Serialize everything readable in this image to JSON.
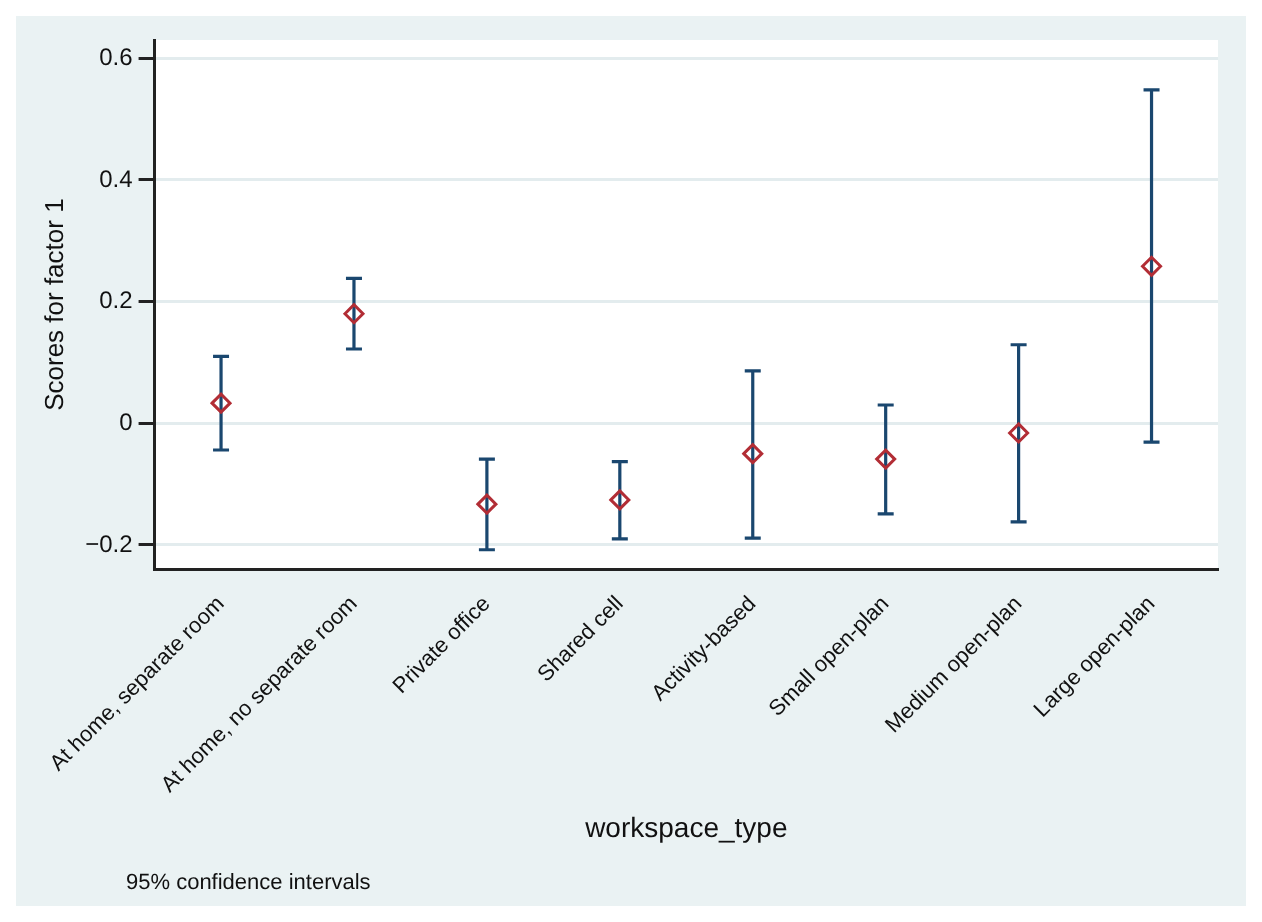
{
  "chart_data": {
    "type": "scatter",
    "xlabel": "workspace_type",
    "ylabel": "Scores for factor 1",
    "annotations": [
      "95% confidence intervals"
    ],
    "categories": [
      "At home, separate room",
      "At home, no separate room",
      "Private office",
      "Shared cell",
      "Activity-based",
      "Small open-plan",
      "Medium open-plan",
      "Large open-plan"
    ],
    "values": [
      0.033,
      0.18,
      -0.133,
      -0.126,
      -0.05,
      -0.059,
      -0.016,
      0.258
    ],
    "errors": [
      [
        -0.044,
        0.11
      ],
      [
        0.122,
        0.238
      ],
      [
        -0.208,
        -0.059
      ],
      [
        -0.19,
        -0.063
      ],
      [
        -0.189,
        0.086
      ],
      [
        -0.149,
        0.03
      ],
      [
        -0.162,
        0.129
      ],
      [
        -0.031,
        0.548
      ]
    ],
    "color": "#b22d35",
    "marker": "diamond",
    "grid": "y",
    "legend": false,
    "ylim": [
      -0.24,
      0.63
    ],
    "yticks": [
      -0.2,
      0,
      0.2,
      0.4,
      0.6
    ]
  }
}
